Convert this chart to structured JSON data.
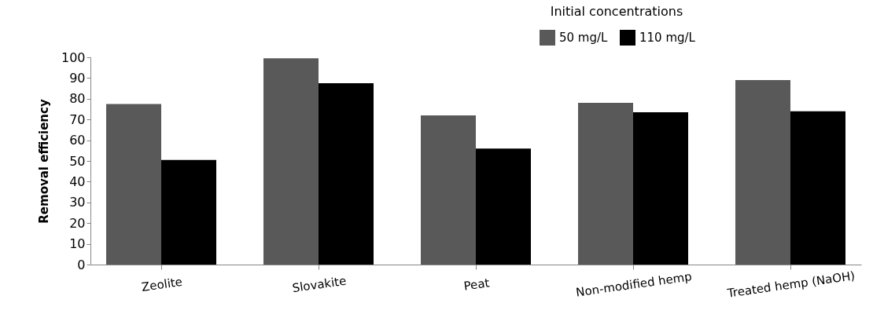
{
  "chart_data": {
    "type": "bar",
    "ylabel": "Removal efficiency",
    "legend_title": "Initial concentrations",
    "legend": "top right",
    "categories": [
      "Zeolite",
      "Slovakite",
      "Peat",
      "Non-modified hemp",
      "Treated hemp (NaOH)"
    ],
    "series": [
      {
        "name": "50 mg/L",
        "color": "#595959",
        "values": [
          77.5,
          99.5,
          72,
          78,
          89
        ]
      },
      {
        "name": "110 mg/L",
        "color": "#000000",
        "values": [
          50.5,
          87.5,
          56,
          73.5,
          74
        ]
      }
    ],
    "ylim": [
      0,
      100
    ],
    "yticks": [
      0,
      10,
      20,
      30,
      40,
      50,
      60,
      70,
      80,
      90,
      100
    ],
    "grid": false
  }
}
